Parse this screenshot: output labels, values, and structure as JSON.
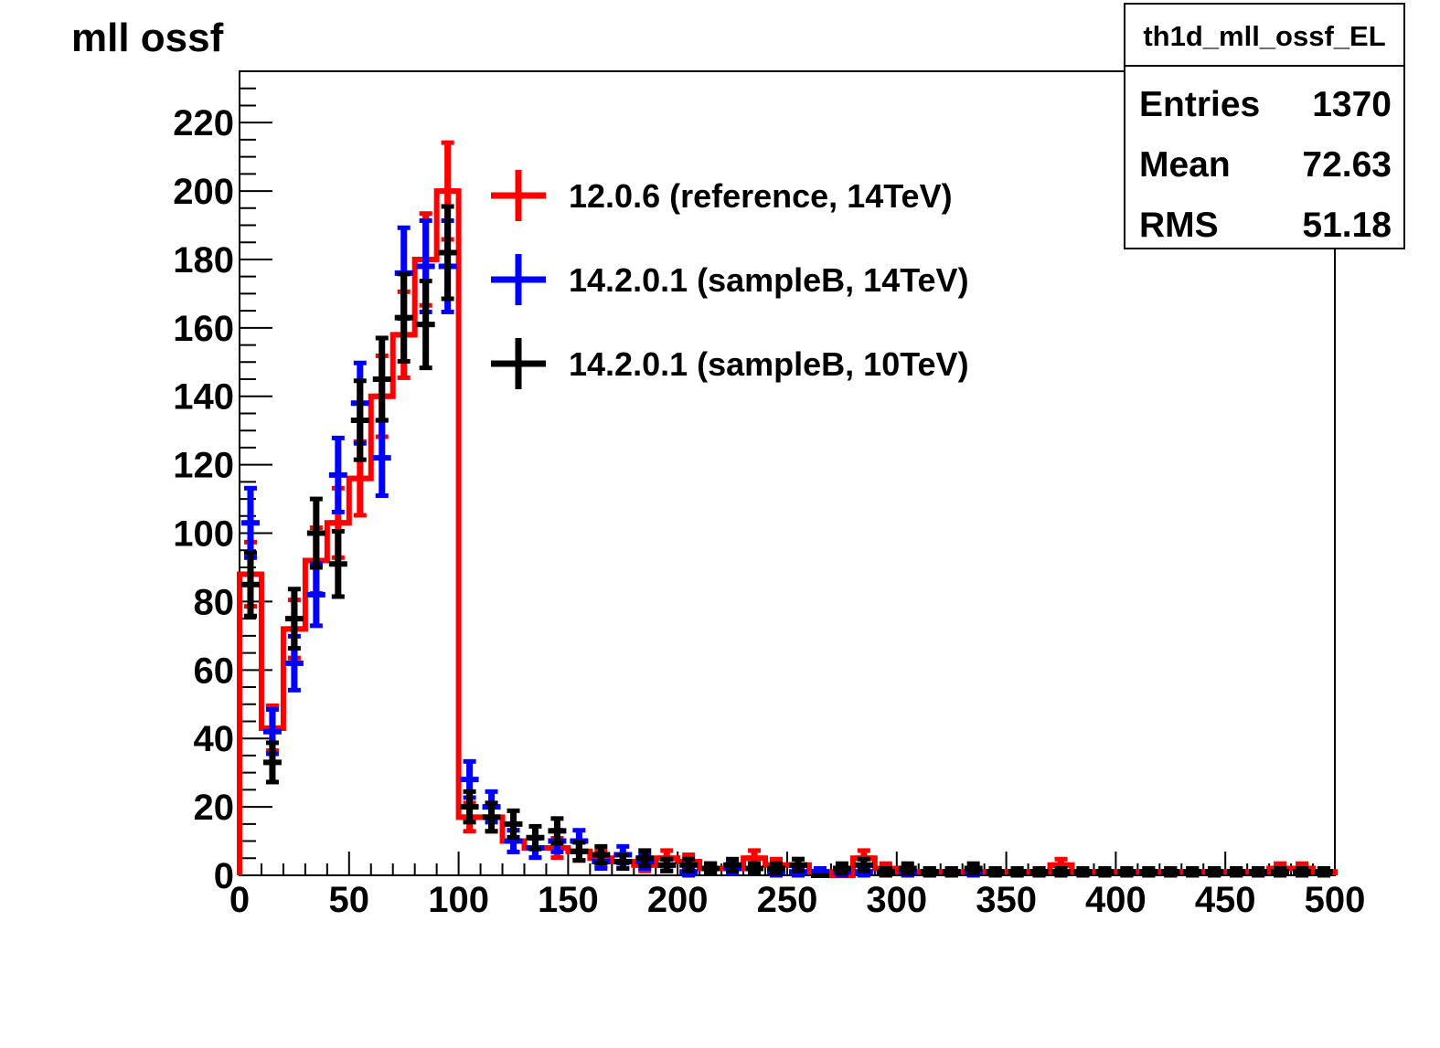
{
  "chart_data": {
    "type": "histogram",
    "title": "mll ossf",
    "xlim": [
      0,
      500
    ],
    "ylim": [
      0,
      235
    ],
    "bin_width": 10,
    "x_ticks": [
      0,
      50,
      100,
      150,
      200,
      250,
      300,
      350,
      400,
      450,
      500
    ],
    "y_ticks": [
      0,
      20,
      40,
      60,
      80,
      100,
      120,
      140,
      160,
      180,
      200,
      220
    ],
    "legend": {
      "placement": "top-center",
      "entries": [
        {
          "label": "12.0.6 (reference, 14TeV)",
          "color": "#ff0000"
        },
        {
          "label": "14.2.0.1 (sampleB, 14TeV)",
          "color": "#0000ff"
        },
        {
          "label": "14.2.0.1 (sampleB, 10TeV)",
          "color": "#000000"
        }
      ]
    },
    "stats_box": {
      "name": "th1d_mll_ossf_EL",
      "rows": [
        {
          "label": "Entries",
          "value": "1370"
        },
        {
          "label": "Mean",
          "value": "72.63"
        },
        {
          "label": "RMS",
          "value": "51.18"
        }
      ]
    },
    "series": [
      {
        "name": "12.0.6 (reference, 14TeV)",
        "color": "#ff0000",
        "values": [
          88,
          43,
          72,
          92,
          103,
          116,
          140,
          158,
          180,
          200,
          17,
          17,
          10,
          8,
          8,
          7,
          5,
          4,
          3,
          5,
          4,
          2,
          2,
          5,
          3,
          3,
          1,
          0,
          5,
          2,
          1,
          1,
          1,
          1,
          1,
          1,
          1,
          3,
          1,
          1,
          1,
          1,
          1,
          1,
          1,
          1,
          1,
          2,
          2,
          1
        ]
      },
      {
        "name": "14.2.0.1 (sampleB, 14TeV)",
        "color": "#0000ff",
        "values": [
          103,
          42,
          62,
          82,
          117,
          138,
          122,
          176,
          178,
          178,
          28,
          20,
          10,
          8,
          10,
          10,
          4,
          6,
          4,
          3,
          1,
          2,
          2,
          2,
          1,
          1,
          1,
          1,
          1,
          1,
          1,
          1,
          1,
          1,
          1,
          1,
          1,
          1,
          1,
          1,
          1,
          1,
          1,
          1,
          1,
          1,
          1,
          1,
          1,
          1
        ]
      },
      {
        "name": "14.2.0.1 (sampleB, 10TeV)",
        "color": "#000000",
        "values": [
          85,
          33,
          75,
          100,
          91,
          133,
          145,
          163,
          161,
          182,
          20,
          17,
          15,
          11,
          13,
          7,
          6,
          4,
          5,
          3,
          3,
          2,
          3,
          2,
          2,
          3,
          0,
          2,
          3,
          1,
          2,
          1,
          1,
          2,
          1,
          1,
          1,
          1,
          1,
          1,
          1,
          1,
          1,
          1,
          1,
          1,
          1,
          1,
          1,
          1
        ]
      }
    ]
  }
}
